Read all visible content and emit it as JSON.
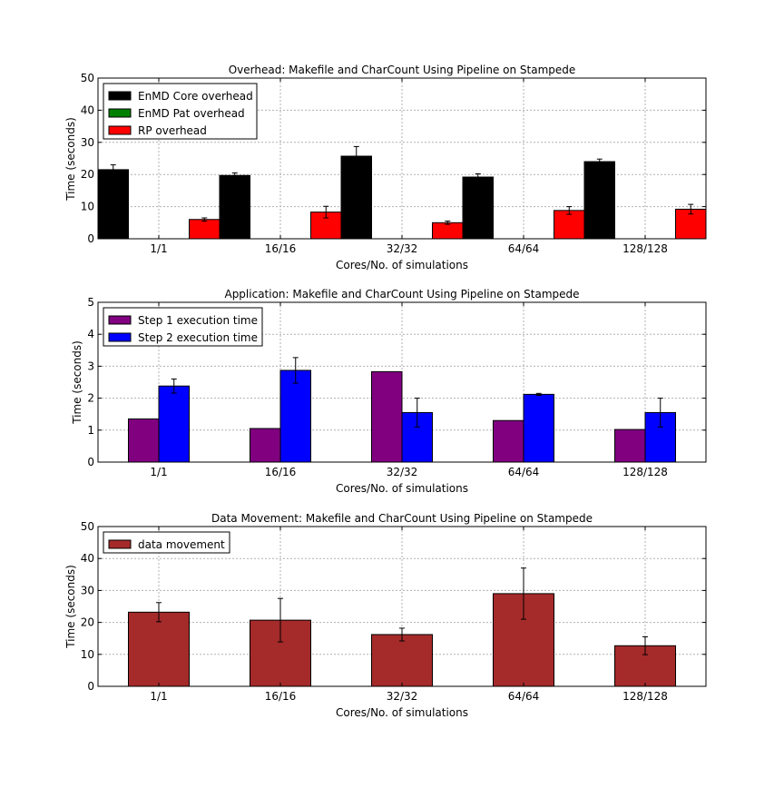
{
  "chart_data": [
    {
      "type": "bar",
      "title": "Overhead: Makefile and CharCount Using Pipeline on Stampede",
      "xlabel": "Cores/No. of simulations",
      "ylabel": "Time (seconds)",
      "ylim": [
        0,
        50
      ],
      "yticks": [
        0,
        10,
        20,
        30,
        40,
        50
      ],
      "categories": [
        "1/1",
        "16/16",
        "32/32",
        "64/64",
        "128/128"
      ],
      "grid": true,
      "legend_position": "top-left",
      "series": [
        {
          "name": "EnMD Core overhead",
          "color": "#000000",
          "values": [
            21.5,
            19.7,
            25.7,
            19.2,
            24.0
          ],
          "errors": [
            1.5,
            0.8,
            3.0,
            1.0,
            0.8
          ]
        },
        {
          "name": "EnMD Pat overhead",
          "color": "#008000",
          "values": [
            0,
            0,
            0,
            0,
            0
          ],
          "errors": [
            0,
            0,
            0,
            0,
            0
          ]
        },
        {
          "name": "RP overhead",
          "color": "#ff0000",
          "values": [
            6.0,
            8.3,
            5.0,
            8.8,
            9.2
          ],
          "errors": [
            0.5,
            1.8,
            0.5,
            1.2,
            1.5
          ]
        }
      ]
    },
    {
      "type": "bar",
      "title": "Application: Makefile and CharCount Using Pipeline on Stampede",
      "xlabel": "Cores/No. of simulations",
      "ylabel": "Time (seconds)",
      "ylim": [
        0,
        5
      ],
      "yticks": [
        0,
        1,
        2,
        3,
        4,
        5
      ],
      "categories": [
        "1/1",
        "16/16",
        "32/32",
        "64/64",
        "128/128"
      ],
      "grid": true,
      "legend_position": "top-left",
      "series": [
        {
          "name": "Step 1 execution time",
          "color": "#800080",
          "values": [
            1.35,
            1.05,
            2.83,
            1.3,
            1.02
          ],
          "errors": [
            0,
            0,
            0,
            0,
            0
          ]
        },
        {
          "name": "Step 2 execution time",
          "color": "#0000ff",
          "values": [
            2.38,
            2.87,
            1.55,
            2.12,
            1.55
          ],
          "errors": [
            0.22,
            0.4,
            0.45,
            0.03,
            0.45
          ]
        }
      ]
    },
    {
      "type": "bar",
      "title": "Data Movement: Makefile and CharCount Using Pipeline on Stampede",
      "xlabel": "Cores/No. of simulations",
      "ylabel": "Time (seconds)",
      "ylim": [
        0,
        50
      ],
      "yticks": [
        0,
        10,
        20,
        30,
        40,
        50
      ],
      "categories": [
        "1/1",
        "16/16",
        "32/32",
        "64/64",
        "128/128"
      ],
      "grid": true,
      "legend_position": "top-left",
      "series": [
        {
          "name": "data movement",
          "color": "#a52a2a",
          "values": [
            23.2,
            20.7,
            16.2,
            29.0,
            12.7
          ],
          "errors": [
            3.0,
            6.8,
            2.0,
            8.0,
            2.8
          ]
        }
      ]
    }
  ]
}
